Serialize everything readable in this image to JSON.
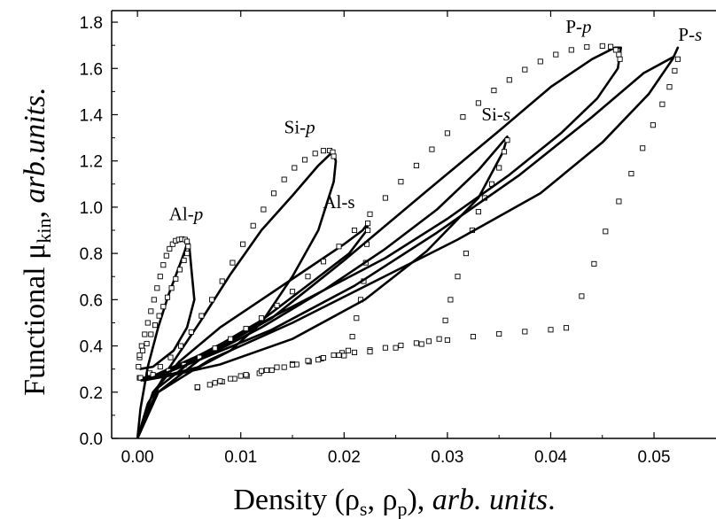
{
  "chart_data": {
    "type": "line",
    "xlabel_prefix": "Density (ρ",
    "xlabel_sub1": "s",
    "xlabel_mid": ", ρ",
    "xlabel_sub2": "p",
    "xlabel_close": "), ",
    "xlabel_italic": "arb. units",
    "xlabel_end": ".",
    "ylabel_prefix": "Functional μ",
    "ylabel_sub": "kin",
    "ylabel_mid": ", ",
    "ylabel_italic": "arb.units",
    "ylabel_end": ".",
    "xlim": [
      -0.0025,
      0.056
    ],
    "ylim": [
      0,
      1.85
    ],
    "x_ticks": [
      0.0,
      0.01,
      0.02,
      0.03,
      0.04,
      0.05
    ],
    "x_tick_labels": [
      "0.00",
      "0.01",
      "0.02",
      "0.03",
      "0.04",
      "0.05"
    ],
    "y_ticks": [
      0.0,
      0.2,
      0.4,
      0.6,
      0.8,
      1.0,
      1.2,
      1.4,
      1.6,
      1.8
    ],
    "y_tick_labels": [
      "0.0",
      "0.2",
      "0.4",
      "0.6",
      "0.8",
      "1.0",
      "1.2",
      "1.4",
      "1.6",
      "1.8"
    ],
    "grid": false,
    "legend": "none",
    "series": [
      {
        "name": "Al-p",
        "label_main": "Al-",
        "label_ital": "p",
        "label_at": [
          0.0047,
          0.945
        ],
        "line": [
          [
            0.0,
            0.0
          ],
          [
            0.0003,
            0.13
          ],
          [
            0.001,
            0.31
          ],
          [
            0.002,
            0.48
          ],
          [
            0.003,
            0.62
          ],
          [
            0.004,
            0.74
          ],
          [
            0.0045,
            0.8
          ],
          [
            0.0049,
            0.855
          ],
          [
            0.005,
            0.84
          ],
          [
            0.0052,
            0.74
          ],
          [
            0.0055,
            0.6
          ],
          [
            0.0048,
            0.48
          ],
          [
            0.0035,
            0.38
          ],
          [
            0.0015,
            0.31
          ],
          [
            0.0002,
            0.3
          ]
        ],
        "markers": [
          [
            0.0001,
            0.31
          ],
          [
            0.0002,
            0.35
          ],
          [
            0.0004,
            0.4
          ],
          [
            0.0007,
            0.45
          ],
          [
            0.001,
            0.5
          ],
          [
            0.0013,
            0.55
          ],
          [
            0.0016,
            0.6
          ],
          [
            0.0019,
            0.65
          ],
          [
            0.0022,
            0.7
          ],
          [
            0.0025,
            0.75
          ],
          [
            0.0028,
            0.79
          ],
          [
            0.0031,
            0.82
          ],
          [
            0.0034,
            0.84
          ],
          [
            0.0037,
            0.855
          ],
          [
            0.004,
            0.86
          ],
          [
            0.0043,
            0.862
          ],
          [
            0.0046,
            0.86
          ],
          [
            0.0048,
            0.852
          ],
          [
            0.0049,
            0.83
          ],
          [
            0.0048,
            0.8
          ],
          [
            0.0045,
            0.77
          ],
          [
            0.0041,
            0.73
          ],
          [
            0.0037,
            0.69
          ],
          [
            0.0033,
            0.65
          ],
          [
            0.0029,
            0.61
          ],
          [
            0.0025,
            0.57
          ],
          [
            0.0021,
            0.53
          ],
          [
            0.0017,
            0.49
          ],
          [
            0.0013,
            0.45
          ],
          [
            0.0009,
            0.41
          ],
          [
            0.0005,
            0.38
          ],
          [
            0.0002,
            0.36
          ]
        ]
      },
      {
        "name": "Si-p",
        "label_main": "Si-",
        "label_ital": "p",
        "label_at": [
          0.0157,
          1.32
        ],
        "line": [
          [
            0.0,
            0.0
          ],
          [
            0.001,
            0.15
          ],
          [
            0.003,
            0.3
          ],
          [
            0.006,
            0.5
          ],
          [
            0.009,
            0.71
          ],
          [
            0.012,
            0.9
          ],
          [
            0.015,
            1.05
          ],
          [
            0.0175,
            1.18
          ],
          [
            0.0189,
            1.24
          ],
          [
            0.0192,
            1.2
          ],
          [
            0.019,
            1.11
          ],
          [
            0.0175,
            0.9
          ],
          [
            0.015,
            0.7
          ],
          [
            0.012,
            0.5
          ],
          [
            0.009,
            0.38
          ],
          [
            0.006,
            0.31
          ],
          [
            0.003,
            0.275
          ],
          [
            0.0003,
            0.26
          ]
        ],
        "markers": [
          [
            0.0002,
            0.262
          ],
          [
            0.0012,
            0.282
          ],
          [
            0.0022,
            0.31
          ],
          [
            0.0032,
            0.35
          ],
          [
            0.0042,
            0.4
          ],
          [
            0.0052,
            0.46
          ],
          [
            0.0062,
            0.53
          ],
          [
            0.0072,
            0.6
          ],
          [
            0.0082,
            0.68
          ],
          [
            0.0092,
            0.76
          ],
          [
            0.0102,
            0.84
          ],
          [
            0.0112,
            0.92
          ],
          [
            0.0122,
            0.99
          ],
          [
            0.0132,
            1.06
          ],
          [
            0.0142,
            1.12
          ],
          [
            0.0152,
            1.17
          ],
          [
            0.0162,
            1.205
          ],
          [
            0.0172,
            1.232
          ],
          [
            0.018,
            1.244
          ],
          [
            0.0186,
            1.245
          ],
          [
            0.0189,
            1.238
          ],
          [
            0.019,
            1.22
          ]
        ]
      },
      {
        "name": "Al-s",
        "label_main": "Al-s",
        "label_ital": "",
        "label_at": [
          0.0195,
          0.995
        ],
        "line": [
          [
            0.0,
            0.0
          ],
          [
            0.0015,
            0.2
          ],
          [
            0.004,
            0.33
          ],
          [
            0.008,
            0.48
          ],
          [
            0.012,
            0.6
          ],
          [
            0.016,
            0.72
          ],
          [
            0.02,
            0.84
          ],
          [
            0.0218,
            0.9
          ],
          [
            0.0223,
            0.93
          ],
          [
            0.0222,
            0.9
          ],
          [
            0.0205,
            0.8
          ],
          [
            0.017,
            0.68
          ],
          [
            0.012,
            0.51
          ],
          [
            0.007,
            0.38
          ],
          [
            0.003,
            0.3
          ],
          [
            0.0005,
            0.25
          ]
        ],
        "markers": [
          [
            0.0058,
            0.22
          ],
          [
            0.007,
            0.232
          ],
          [
            0.0082,
            0.245
          ],
          [
            0.0094,
            0.258
          ],
          [
            0.0106,
            0.27
          ],
          [
            0.0118,
            0.282
          ],
          [
            0.013,
            0.295
          ],
          [
            0.0142,
            0.308
          ],
          [
            0.0154,
            0.32
          ],
          [
            0.0166,
            0.332
          ],
          [
            0.0178,
            0.345
          ],
          [
            0.019,
            0.36
          ],
          [
            0.0198,
            0.37
          ],
          [
            0.0204,
            0.38
          ],
          [
            0.0208,
            0.44
          ],
          [
            0.0212,
            0.52
          ],
          [
            0.0216,
            0.6
          ],
          [
            0.0219,
            0.68
          ],
          [
            0.0221,
            0.76
          ],
          [
            0.0222,
            0.84
          ],
          [
            0.0223,
            0.9
          ],
          [
            0.0223,
            0.93
          ]
        ]
      },
      {
        "name": "Si-s",
        "label_main": "Si-",
        "label_ital": "s",
        "label_at": [
          0.0347,
          1.375
        ],
        "line": [
          [
            0.0,
            0.0
          ],
          [
            0.002,
            0.2
          ],
          [
            0.006,
            0.34
          ],
          [
            0.012,
            0.48
          ],
          [
            0.018,
            0.64
          ],
          [
            0.024,
            0.82
          ],
          [
            0.029,
            0.99
          ],
          [
            0.033,
            1.16
          ],
          [
            0.0355,
            1.29
          ],
          [
            0.0358,
            1.305
          ],
          [
            0.0354,
            1.24
          ],
          [
            0.033,
            1.04
          ],
          [
            0.028,
            0.81
          ],
          [
            0.022,
            0.6
          ],
          [
            0.015,
            0.43
          ],
          [
            0.008,
            0.32
          ],
          [
            0.003,
            0.27
          ],
          [
            0.0005,
            0.25
          ]
        ],
        "markers": [
          [
            0.0058,
            0.222
          ],
          [
            0.0075,
            0.24
          ],
          [
            0.009,
            0.258
          ],
          [
            0.0105,
            0.275
          ],
          [
            0.012,
            0.292
          ],
          [
            0.0135,
            0.308
          ],
          [
            0.015,
            0.322
          ],
          [
            0.0165,
            0.336
          ],
          [
            0.018,
            0.348
          ],
          [
            0.0195,
            0.36
          ],
          [
            0.021,
            0.372
          ],
          [
            0.0225,
            0.382
          ],
          [
            0.024,
            0.392
          ],
          [
            0.0255,
            0.402
          ],
          [
            0.027,
            0.412
          ],
          [
            0.0282,
            0.42
          ],
          [
            0.0292,
            0.43
          ],
          [
            0.0298,
            0.51
          ],
          [
            0.0303,
            0.6
          ],
          [
            0.031,
            0.7
          ],
          [
            0.0318,
            0.8
          ],
          [
            0.0324,
            0.9
          ],
          [
            0.033,
            0.98
          ],
          [
            0.0336,
            1.04
          ],
          [
            0.0343,
            1.1
          ],
          [
            0.035,
            1.17
          ],
          [
            0.0355,
            1.24
          ],
          [
            0.0358,
            1.29
          ]
        ]
      },
      {
        "name": "P-p",
        "label_main": "P-",
        "label_ital": "p",
        "label_at": [
          0.0427,
          1.755
        ],
        "line": [
          [
            0.0,
            0.0
          ],
          [
            0.002,
            0.22
          ],
          [
            0.006,
            0.36
          ],
          [
            0.012,
            0.5
          ],
          [
            0.018,
            0.64
          ],
          [
            0.024,
            0.78
          ],
          [
            0.03,
            0.95
          ],
          [
            0.036,
            1.14
          ],
          [
            0.041,
            1.32
          ],
          [
            0.0445,
            1.47
          ],
          [
            0.0465,
            1.6
          ],
          [
            0.0468,
            1.69
          ],
          [
            0.0462,
            1.69
          ],
          [
            0.044,
            1.64
          ],
          [
            0.04,
            1.52
          ],
          [
            0.035,
            1.33
          ],
          [
            0.028,
            1.07
          ],
          [
            0.02,
            0.77
          ],
          [
            0.013,
            0.52
          ],
          [
            0.007,
            0.37
          ],
          [
            0.003,
            0.29
          ],
          [
            0.0005,
            0.26
          ]
        ],
        "markers": [
          [
            0.0003,
            0.262
          ],
          [
            0.0015,
            0.275
          ],
          [
            0.003,
            0.292
          ],
          [
            0.0045,
            0.318
          ],
          [
            0.006,
            0.35
          ],
          [
            0.0075,
            0.39
          ],
          [
            0.009,
            0.43
          ],
          [
            0.0105,
            0.475
          ],
          [
            0.012,
            0.52
          ],
          [
            0.0135,
            0.575
          ],
          [
            0.015,
            0.635
          ],
          [
            0.0165,
            0.7
          ],
          [
            0.018,
            0.765
          ],
          [
            0.0195,
            0.83
          ],
          [
            0.021,
            0.9
          ],
          [
            0.0225,
            0.97
          ],
          [
            0.024,
            1.04
          ],
          [
            0.0255,
            1.11
          ],
          [
            0.027,
            1.18
          ],
          [
            0.0285,
            1.25
          ],
          [
            0.03,
            1.32
          ],
          [
            0.0315,
            1.39
          ],
          [
            0.033,
            1.45
          ],
          [
            0.0345,
            1.505
          ],
          [
            0.036,
            1.55
          ],
          [
            0.0375,
            1.595
          ],
          [
            0.039,
            1.63
          ],
          [
            0.0405,
            1.66
          ],
          [
            0.042,
            1.68
          ],
          [
            0.0435,
            1.693
          ],
          [
            0.045,
            1.697
          ],
          [
            0.0458,
            1.694
          ],
          [
            0.0463,
            1.68
          ],
          [
            0.0466,
            1.66
          ],
          [
            0.0467,
            1.64
          ]
        ]
      },
      {
        "name": "P-s",
        "label_main": "P-",
        "label_ital": "s",
        "label_at": [
          0.0535,
          1.72
        ],
        "line": [
          [
            0.0,
            0.0
          ],
          [
            0.002,
            0.2
          ],
          [
            0.007,
            0.34
          ],
          [
            0.015,
            0.5
          ],
          [
            0.023,
            0.68
          ],
          [
            0.031,
            0.86
          ],
          [
            0.039,
            1.06
          ],
          [
            0.045,
            1.28
          ],
          [
            0.0495,
            1.49
          ],
          [
            0.0518,
            1.64
          ],
          [
            0.0523,
            1.69
          ],
          [
            0.0519,
            1.65
          ],
          [
            0.049,
            1.58
          ],
          [
            0.044,
            1.39
          ],
          [
            0.037,
            1.14
          ],
          [
            0.029,
            0.89
          ],
          [
            0.021,
            0.66
          ],
          [
            0.013,
            0.47
          ],
          [
            0.006,
            0.34
          ],
          [
            0.002,
            0.27
          ],
          [
            0.0003,
            0.25
          ]
        ],
        "markers": [
          [
            0.0058,
            0.222
          ],
          [
            0.008,
            0.248
          ],
          [
            0.01,
            0.27
          ],
          [
            0.0125,
            0.295
          ],
          [
            0.015,
            0.318
          ],
          [
            0.0175,
            0.34
          ],
          [
            0.02,
            0.358
          ],
          [
            0.0225,
            0.375
          ],
          [
            0.025,
            0.392
          ],
          [
            0.0275,
            0.408
          ],
          [
            0.03,
            0.425
          ],
          [
            0.0325,
            0.44
          ],
          [
            0.035,
            0.452
          ],
          [
            0.0375,
            0.462
          ],
          [
            0.04,
            0.47
          ],
          [
            0.0415,
            0.478
          ],
          [
            0.043,
            0.615
          ],
          [
            0.0442,
            0.755
          ],
          [
            0.0453,
            0.895
          ],
          [
            0.0466,
            1.025
          ],
          [
            0.0478,
            1.145
          ],
          [
            0.0489,
            1.255
          ],
          [
            0.0499,
            1.355
          ],
          [
            0.0508,
            1.445
          ],
          [
            0.0515,
            1.52
          ],
          [
            0.052,
            1.59
          ],
          [
            0.0523,
            1.64
          ]
        ]
      }
    ]
  }
}
